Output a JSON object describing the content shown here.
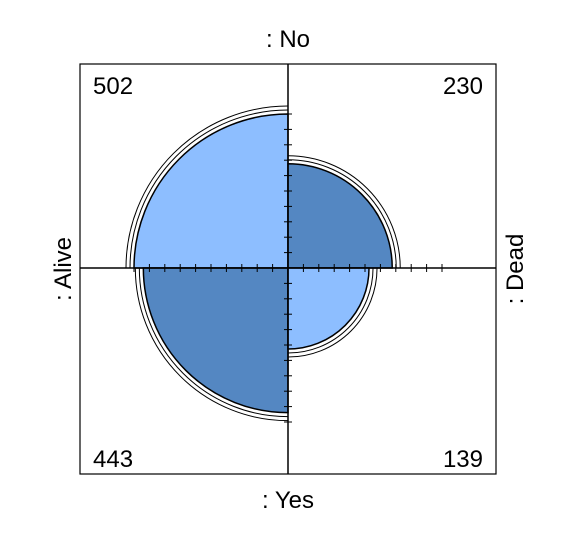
{
  "chart_data": {
    "type": "fourfold",
    "row_labels": [
      ": No",
      ": Yes"
    ],
    "col_labels": [
      ": Alive",
      ": Dead"
    ],
    "cells": [
      {
        "row": ": No",
        "col": ": Alive",
        "value": 502
      },
      {
        "row": ": No",
        "col": ": Dead",
        "value": 230
      },
      {
        "row": ": Yes",
        "col": ": Alive",
        "value": 443
      },
      {
        "row": ": Yes",
        "col": ": Dead",
        "value": 139
      }
    ],
    "grid": false,
    "colors": {
      "light_quadrant": "#8dbeff",
      "dark_quadrant": "#5487c2",
      "outline": "#000000",
      "axis": "#000000"
    }
  }
}
